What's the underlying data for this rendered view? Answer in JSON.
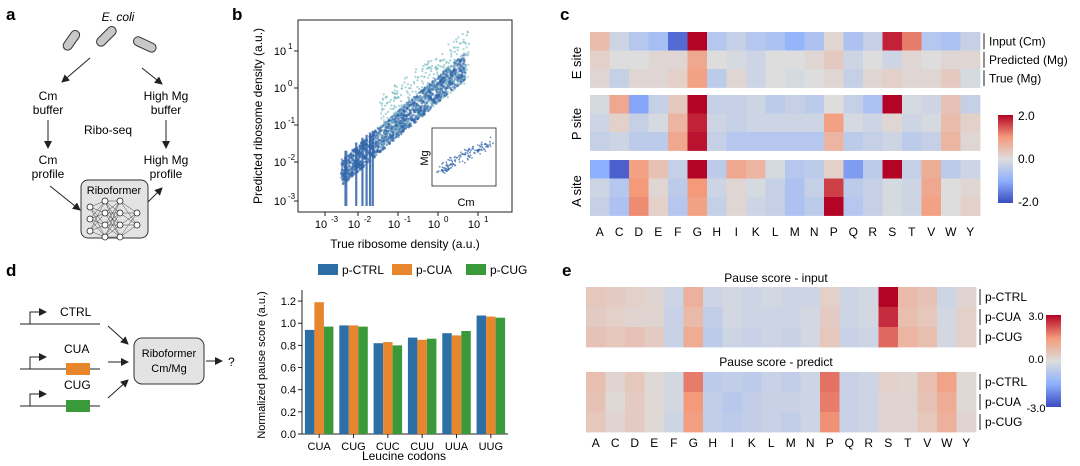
{
  "panel_labels": {
    "a": "a",
    "b": "b",
    "c": "c",
    "d": "d",
    "e": "e"
  },
  "panel_a": {
    "organism": "E. coli",
    "cm_buffer_1": "Cm",
    "cm_buffer_2": "buffer",
    "mg_buffer_1": "High Mg",
    "mg_buffer_2": "buffer",
    "method": "Ribo-seq",
    "cm_profile_1": "Cm",
    "cm_profile_2": "profile",
    "mg_profile_1": "High Mg",
    "mg_profile_2": "profile",
    "model": "Riboformer"
  },
  "panel_d": {
    "ctrl": "CTRL",
    "cua": "CUA",
    "cug": "CUG",
    "model_1": "Riboformer",
    "model_2": "Cm/Mg",
    "output": "?",
    "colors": {
      "cua_box": "#e8862e",
      "cug_box": "#3a9a3a"
    }
  },
  "panel_c": {
    "rows": [
      "Input (Cm)",
      "Predicted (Mg)",
      "True (Mg)"
    ],
    "sites": [
      "E site",
      "P site",
      "A site"
    ],
    "colorbar": {
      "max": "2.0",
      "mid": "0.0",
      "min": "-2.0"
    }
  },
  "panel_e": {
    "title_input": "Pause score - input",
    "title_predict": "Pause score - predict",
    "rows": [
      "p-CTRL",
      "p-CUA",
      "p-CUG"
    ],
    "colorbar": {
      "max": "3.0",
      "mid": "0.0",
      "min": "-3.0"
    }
  },
  "amino_acids": [
    "A",
    "C",
    "D",
    "E",
    "F",
    "G",
    "H",
    "I",
    "K",
    "L",
    "M",
    "N",
    "P",
    "Q",
    "R",
    "S",
    "T",
    "V",
    "W",
    "Y"
  ],
  "heatmap_c": {
    "E": [
      [
        0.5,
        -0.2,
        -0.5,
        -0.7,
        -1.7,
        2.0,
        -0.5,
        -0.3,
        -0.5,
        -0.6,
        -0.9,
        -0.6,
        0.1,
        -0.6,
        -0.3,
        1.8,
        1.2,
        -0.5,
        -0.6,
        -0.3
      ],
      [
        0.2,
        0.0,
        0.0,
        0.1,
        0.1,
        0.8,
        0.0,
        -0.1,
        -0.2,
        0.0,
        0.0,
        0.1,
        0.3,
        -0.2,
        0.0,
        -0.2,
        0.1,
        0.0,
        0.1,
        0.1
      ],
      [
        0.1,
        -0.3,
        0.1,
        0.1,
        0.2,
        0.9,
        -0.4,
        0.1,
        -0.2,
        0.0,
        -0.1,
        0.0,
        0.1,
        -0.3,
        0.1,
        0.2,
        0.1,
        0.1,
        0.3,
        -0.1
      ]
    ],
    "P": [
      [
        -0.1,
        0.8,
        -1.1,
        -0.3,
        0.3,
        2.0,
        -0.3,
        -0.3,
        -0.2,
        -0.4,
        -0.3,
        -0.4,
        0.0,
        -0.3,
        -0.6,
        2.0,
        -0.1,
        -0.2,
        0.4,
        -0.3
      ],
      [
        -0.2,
        0.2,
        -0.3,
        -0.1,
        0.6,
        1.8,
        -0.2,
        -0.3,
        -0.2,
        -0.2,
        -0.2,
        -0.2,
        0.9,
        -0.1,
        -0.2,
        0.1,
        -0.2,
        -0.1,
        0.5,
        0.2
      ],
      [
        -0.3,
        -0.2,
        -0.4,
        -0.4,
        0.8,
        1.9,
        -0.3,
        -0.5,
        -0.5,
        -0.5,
        -0.5,
        -0.5,
        0.6,
        -0.4,
        -0.3,
        -0.2,
        -0.4,
        -0.3,
        0.6,
        0.1
      ]
    ],
    "A": [
      [
        -1.0,
        -1.8,
        0.9,
        0.4,
        -0.3,
        2.0,
        -0.4,
        0.8,
        0.6,
        -0.1,
        -0.5,
        -0.4,
        0.2,
        -1.2,
        -0.4,
        2.0,
        -0.3,
        0.7,
        -0.4,
        -0.2
      ],
      [
        -0.2,
        -0.5,
        1.0,
        0.1,
        -0.4,
        1.0,
        -0.2,
        0.1,
        -0.1,
        -0.3,
        -0.6,
        -0.3,
        1.6,
        -0.4,
        -0.3,
        -0.1,
        -0.2,
        0.8,
        0.0,
        0.1
      ],
      [
        -0.3,
        -0.6,
        1.1,
        0.2,
        -0.5,
        0.9,
        -0.3,
        0.1,
        -0.2,
        -0.3,
        -0.6,
        -0.4,
        2.0,
        -0.5,
        -0.3,
        -0.1,
        -0.2,
        0.9,
        0.0,
        0.2
      ]
    ]
  },
  "heatmap_e": {
    "input": [
      [
        0.5,
        0.4,
        0.3,
        0.2,
        -0.3,
        1.0,
        -0.3,
        -0.2,
        -0.3,
        -0.2,
        -0.3,
        -0.3,
        0.3,
        -0.3,
        -0.2,
        3.0,
        0.8,
        0.6,
        -0.3,
        0.2
      ],
      [
        0.4,
        0.3,
        0.2,
        0.2,
        -0.4,
        0.8,
        -0.5,
        -0.2,
        -0.3,
        -0.3,
        -0.3,
        -0.2,
        0.4,
        -0.3,
        -0.2,
        2.6,
        0.7,
        0.5,
        -0.2,
        0.3
      ],
      [
        0.6,
        0.5,
        0.6,
        0.4,
        -0.4,
        1.1,
        -0.6,
        -0.3,
        -0.4,
        -0.3,
        -0.4,
        -0.2,
        0.5,
        -0.4,
        -0.3,
        2.0,
        0.9,
        0.7,
        -0.2,
        0.3
      ]
    ],
    "predict": [
      [
        0.7,
        0.2,
        0.5,
        0.1,
        -0.2,
        1.8,
        -0.6,
        -0.5,
        -0.6,
        -0.4,
        -0.5,
        -0.3,
        1.9,
        -0.4,
        -0.3,
        0.3,
        0.2,
        0.7,
        1.3,
        0.1
      ],
      [
        0.6,
        0.1,
        0.4,
        0.1,
        -0.2,
        1.5,
        -0.5,
        -0.7,
        -0.5,
        -0.4,
        -0.4,
        -0.3,
        1.8,
        -0.4,
        -0.3,
        0.2,
        0.2,
        0.6,
        1.1,
        0.1
      ],
      [
        0.5,
        0.2,
        0.4,
        0.1,
        -0.3,
        1.4,
        -0.5,
        -0.6,
        -0.5,
        -0.4,
        -0.5,
        -0.3,
        1.6,
        -0.4,
        -0.3,
        0.2,
        0.2,
        0.5,
        1.0,
        0.2
      ]
    ]
  },
  "scatter_b": {
    "xlabel": "True ribosome density (a.u.)",
    "ylabel": "Predicted ribosome density (a.u.)",
    "x_ticks": [
      "10",
      "10",
      "10",
      "10",
      "10"
    ],
    "x_exps": [
      "-3",
      "-2",
      "-1",
      "0",
      "1"
    ],
    "y_ticks": [
      "10",
      "10",
      "10",
      "10",
      "10"
    ],
    "y_exps": [
      "-3",
      "-2",
      "-1",
      "0",
      "1"
    ],
    "inset_xlabel": "Cm",
    "inset_ylabel": "Mg",
    "color": "#2f64a8"
  },
  "chart_data": {
    "type": "bar",
    "title": "",
    "xlabel": "Leucine codons",
    "ylabel": "Normalized pause score (a.u.)",
    "ylim": [
      0,
      1.3
    ],
    "yticks": [
      "0.0",
      "0.2",
      "0.4",
      "0.6",
      "0.8",
      "1.0",
      "1.2"
    ],
    "categories": [
      "CUA",
      "CUG",
      "CUC",
      "CUU",
      "UUA",
      "UUG"
    ],
    "legend": "top",
    "series": [
      {
        "name": "p-CTRL",
        "color": "#2c6fa6",
        "values": [
          0.94,
          0.98,
          0.82,
          0.87,
          0.91,
          1.07
        ]
      },
      {
        "name": "p-CUA",
        "color": "#e8862e",
        "values": [
          1.19,
          0.98,
          0.83,
          0.85,
          0.89,
          1.06
        ]
      },
      {
        "name": "p-CUG",
        "color": "#3a9a3a",
        "values": [
          0.97,
          0.97,
          0.8,
          0.86,
          0.93,
          1.05
        ]
      }
    ]
  }
}
